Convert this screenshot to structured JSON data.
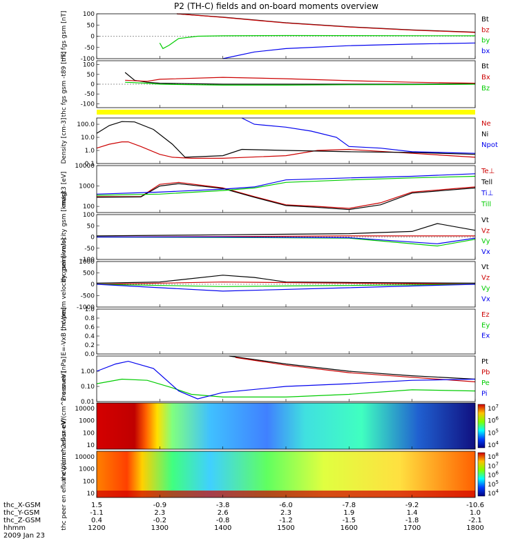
{
  "title": "P2 (TH-C) fields and on-board moments overview",
  "date": "2009 Jan 23",
  "orbit": {
    "labels": [
      "thc_X-GSM",
      "thc_Y-GSM",
      "thc_Z-GSM",
      "hhmm"
    ],
    "columns": [
      [
        "1.5",
        "-1.1",
        "0.4",
        "1200"
      ],
      [
        "-0.9",
        "2.3",
        "-0.2",
        "1300"
      ],
      [
        "-3.8",
        "2.6",
        "-0.8",
        "1400"
      ],
      [
        "-6.0",
        "2.3",
        "-1.2",
        "1500"
      ],
      [
        "-7.8",
        "1.9",
        "-1.5",
        "1600"
      ],
      [
        "-9.2",
        "1.4",
        "-1.8",
        "1700"
      ],
      [
        "-10.6",
        "1.0",
        "-2.1",
        "1800"
      ]
    ]
  },
  "chart_data": [
    {
      "type": "line",
      "ylabel": "thc fgs gsm [nT]",
      "yticks": [
        "100",
        "50",
        "0",
        "-50",
        "-100"
      ],
      "ylim": [
        -100,
        100
      ],
      "series": [
        {
          "name": "Bt",
          "color": "#000000",
          "x": [
            1327,
            1400,
            1500,
            1600,
            1700,
            1800
          ],
          "values": [
            100,
            85,
            60,
            42,
            28,
            18
          ]
        },
        {
          "name": "bz",
          "color": "#cc0000",
          "x": [
            1327,
            1400,
            1500,
            1600,
            1700,
            1800
          ],
          "values": [
            100,
            84,
            59,
            41,
            27,
            17
          ]
        },
        {
          "name": "by",
          "color": "#00cc00",
          "x": [
            1300,
            1305,
            1315,
            1330,
            1360,
            1400,
            1500,
            1800
          ],
          "values": [
            -30,
            -55,
            -40,
            -10,
            0,
            2,
            3,
            2
          ]
        },
        {
          "name": "bx",
          "color": "#0000ee",
          "x": [
            1400,
            1450,
            1500,
            1600,
            1700,
            1800
          ],
          "values": [
            -100,
            -70,
            -55,
            -42,
            -35,
            -30
          ]
        }
      ]
    },
    {
      "type": "line",
      "ylabel": "thc fgs gsm -t89 [nT]",
      "yticks": [
        "100",
        "50",
        "0",
        "-50",
        "-100"
      ],
      "ylim": [
        -120,
        120
      ],
      "series": [
        {
          "name": "Bt",
          "color": "#000000",
          "x": [
            1245,
            1260,
            1280,
            1300,
            1400,
            1500,
            1600,
            1700,
            1800
          ],
          "values": [
            60,
            20,
            10,
            5,
            0,
            0,
            0,
            0,
            2
          ]
        },
        {
          "name": "Bx",
          "color": "#cc0000",
          "x": [
            1245,
            1280,
            1300,
            1400,
            1500,
            1600,
            1700,
            1800
          ],
          "values": [
            20,
            15,
            25,
            35,
            28,
            18,
            10,
            5
          ]
        },
        {
          "name": "Bz",
          "color": "#00cc00",
          "x": [
            1245,
            1280,
            1300,
            1400,
            1500,
            1600,
            1700,
            1800
          ],
          "values": [
            10,
            5,
            0,
            -5,
            -5,
            -3,
            -2,
            0
          ]
        }
      ]
    },
    {
      "type": "line",
      "ylabel": "Density [cm-3]",
      "yticks": [
        "100.0",
        "10.0",
        "1.0",
        "0.1"
      ],
      "ylim": [
        0.1,
        300
      ],
      "scale": "log",
      "series": [
        {
          "name": "Ne",
          "color": "#cc0000",
          "x": [
            1200,
            1220,
            1240,
            1250,
            1270,
            1300,
            1320,
            1350,
            1400,
            1500,
            1550,
            1600,
            1700,
            1800
          ],
          "values": [
            1.5,
            3,
            4.5,
            4.5,
            2,
            0.5,
            0.3,
            0.25,
            0.25,
            0.4,
            1,
            1.2,
            0.6,
            0.3
          ]
        },
        {
          "name": "Ni",
          "color": "#000000",
          "x": [
            1200,
            1220,
            1240,
            1260,
            1290,
            1320,
            1340,
            1400,
            1430,
            1500,
            1600,
            1700,
            1800
          ],
          "values": [
            20,
            80,
            160,
            150,
            40,
            3,
            0.3,
            0.4,
            1.2,
            1,
            0.8,
            0.7,
            0.5
          ]
        },
        {
          "name": "Npot",
          "color": "#0000ee",
          "x": [
            1430,
            1450,
            1500,
            1540,
            1580,
            1600,
            1650,
            1700,
            1800
          ],
          "values": [
            300,
            100,
            60,
            30,
            10,
            2,
            1.5,
            0.8,
            0.6
          ]
        }
      ]
    },
    {
      "type": "line",
      "ylabel": "magt3 [eV]",
      "yticks": [
        "10000",
        "1000",
        "100"
      ],
      "ylim": [
        50,
        10000
      ],
      "scale": "log",
      "series": [
        {
          "name": "Te⊥",
          "color": "#cc0000",
          "x": [
            1200,
            1270,
            1300,
            1330,
            1400,
            1450,
            1500,
            1550,
            1600,
            1650,
            1700,
            1800
          ],
          "values": [
            300,
            300,
            1200,
            1500,
            800,
            300,
            120,
            100,
            80,
            150,
            500,
            900
          ]
        },
        {
          "name": "Tell",
          "color": "#000000",
          "x": [
            1200,
            1270,
            1300,
            1330,
            1400,
            1450,
            1500,
            1550,
            1600,
            1650,
            1700,
            1800
          ],
          "values": [
            280,
            290,
            1000,
            1300,
            750,
            280,
            110,
            90,
            70,
            120,
            450,
            800
          ]
        },
        {
          "name": "Ti⊥",
          "color": "#0000ee",
          "x": [
            1200,
            1300,
            1400,
            1450,
            1500,
            1600,
            1700,
            1800
          ],
          "values": [
            400,
            500,
            700,
            900,
            2000,
            2500,
            3000,
            4000
          ]
        },
        {
          "name": "Till",
          "color": "#00cc00",
          "x": [
            1200,
            1300,
            1400,
            1450,
            1500,
            1600,
            1700,
            1800
          ],
          "values": [
            350,
            400,
            600,
            800,
            1500,
            2000,
            2500,
            3000
          ]
        }
      ]
    },
    {
      "type": "line",
      "ylabel": "thc peim velocity gsm [km/s]",
      "yticks": [
        "100",
        "50",
        "0",
        "-50",
        "-100"
      ],
      "ylim": [
        -100,
        100
      ],
      "series": [
        {
          "name": "Vt",
          "color": "#000000",
          "x": [
            1200,
            1400,
            1600,
            1700,
            1740,
            1800
          ],
          "values": [
            5,
            10,
            15,
            25,
            60,
            30
          ]
        },
        {
          "name": "Vz",
          "color": "#cc0000",
          "x": [
            1200,
            1400,
            1600,
            1800
          ],
          "values": [
            0,
            2,
            5,
            5
          ]
        },
        {
          "name": "Vy",
          "color": "#00cc00",
          "x": [
            1200,
            1400,
            1600,
            1740,
            1800
          ],
          "values": [
            0,
            -2,
            -5,
            -40,
            -10
          ]
        },
        {
          "name": "Vx",
          "color": "#0000ee",
          "x": [
            1200,
            1400,
            1600,
            1740,
            1800
          ],
          "values": [
            0,
            0,
            -3,
            -30,
            -5
          ]
        }
      ]
    },
    {
      "type": "line",
      "ylabel": "thc peem velocity gsm [km/s]",
      "yticks": [
        "1000",
        "500",
        "0",
        "-500",
        "-1000"
      ],
      "ylim": [
        -1000,
        1000
      ],
      "series": [
        {
          "name": "Vt",
          "color": "#000000",
          "x": [
            1200,
            1300,
            1400,
            1450,
            1500,
            1600,
            1800
          ],
          "values": [
            50,
            100,
            400,
            300,
            100,
            80,
            50
          ]
        },
        {
          "name": "Vz",
          "color": "#cc0000",
          "x": [
            1200,
            1400,
            1800
          ],
          "values": [
            0,
            100,
            0
          ]
        },
        {
          "name": "Vy",
          "color": "#00cc00",
          "x": [
            1200,
            1400,
            1800
          ],
          "values": [
            0,
            -100,
            0
          ]
        },
        {
          "name": "Vx",
          "color": "#0000ee",
          "x": [
            1200,
            1400,
            1800
          ],
          "values": [
            0,
            -300,
            0
          ]
        }
      ]
    },
    {
      "type": "line",
      "ylabel": "E=-VxB [mV/m]",
      "yticks": [
        "1.0",
        "0.8",
        "0.6",
        "0.4",
        "0.2",
        "0.0"
      ],
      "ylim": [
        0,
        1
      ],
      "series": [
        {
          "name": "Ez",
          "color": "#cc0000",
          "x": [],
          "values": []
        },
        {
          "name": "Ey",
          "color": "#00cc00",
          "x": [],
          "values": []
        },
        {
          "name": "Ex",
          "color": "#0000ee",
          "x": [],
          "values": []
        }
      ]
    },
    {
      "type": "line",
      "ylabel": "Pressure [nPa]",
      "yticks": [
        "1.00",
        "0.10",
        "0.01"
      ],
      "ylim": [
        0.01,
        10
      ],
      "scale": "log",
      "series": [
        {
          "name": "Pt",
          "color": "#000000",
          "x": [
            1410,
            1500,
            1600,
            1700,
            1800
          ],
          "values": [
            10,
            3,
            1,
            0.5,
            0.3
          ]
        },
        {
          "name": "Pb",
          "color": "#cc0000",
          "x": [
            1420,
            1500,
            1600,
            1700,
            1800
          ],
          "values": [
            8,
            2.5,
            0.8,
            0.4,
            0.2
          ]
        },
        {
          "name": "Pe",
          "color": "#00cc00",
          "x": [
            1200,
            1240,
            1280,
            1320,
            1350,
            1400,
            1500,
            1600,
            1700,
            1800
          ],
          "values": [
            0.15,
            0.3,
            0.25,
            0.08,
            0.03,
            0.02,
            0.02,
            0.03,
            0.06,
            0.05
          ]
        },
        {
          "name": "Pi",
          "color": "#0000ee",
          "x": [
            1200,
            1230,
            1250,
            1290,
            1330,
            1360,
            1400,
            1500,
            1600,
            1700,
            1800
          ],
          "values": [
            1,
            3,
            4.5,
            1.5,
            0.05,
            0.015,
            0.04,
            0.1,
            0.15,
            0.25,
            0.3
          ]
        }
      ]
    },
    {
      "type": "heatmap",
      "ylabel": "thc peir en eflux eV/(cm^2-s-sr-eV)",
      "yticks": [
        "10000",
        "1000",
        "100",
        "10"
      ],
      "colorbar": [
        "10^7",
        "10^6",
        "10^5",
        "10^4"
      ]
    },
    {
      "type": "heatmap",
      "ylabel": "thc peer en eflux eV/(cm^2-s-sr-eV)",
      "yticks": [
        "10000",
        "1000",
        "100",
        "10"
      ],
      "colorbar": [
        "10^8",
        "10^7",
        "10^6",
        "10^5",
        "10^4"
      ]
    }
  ]
}
